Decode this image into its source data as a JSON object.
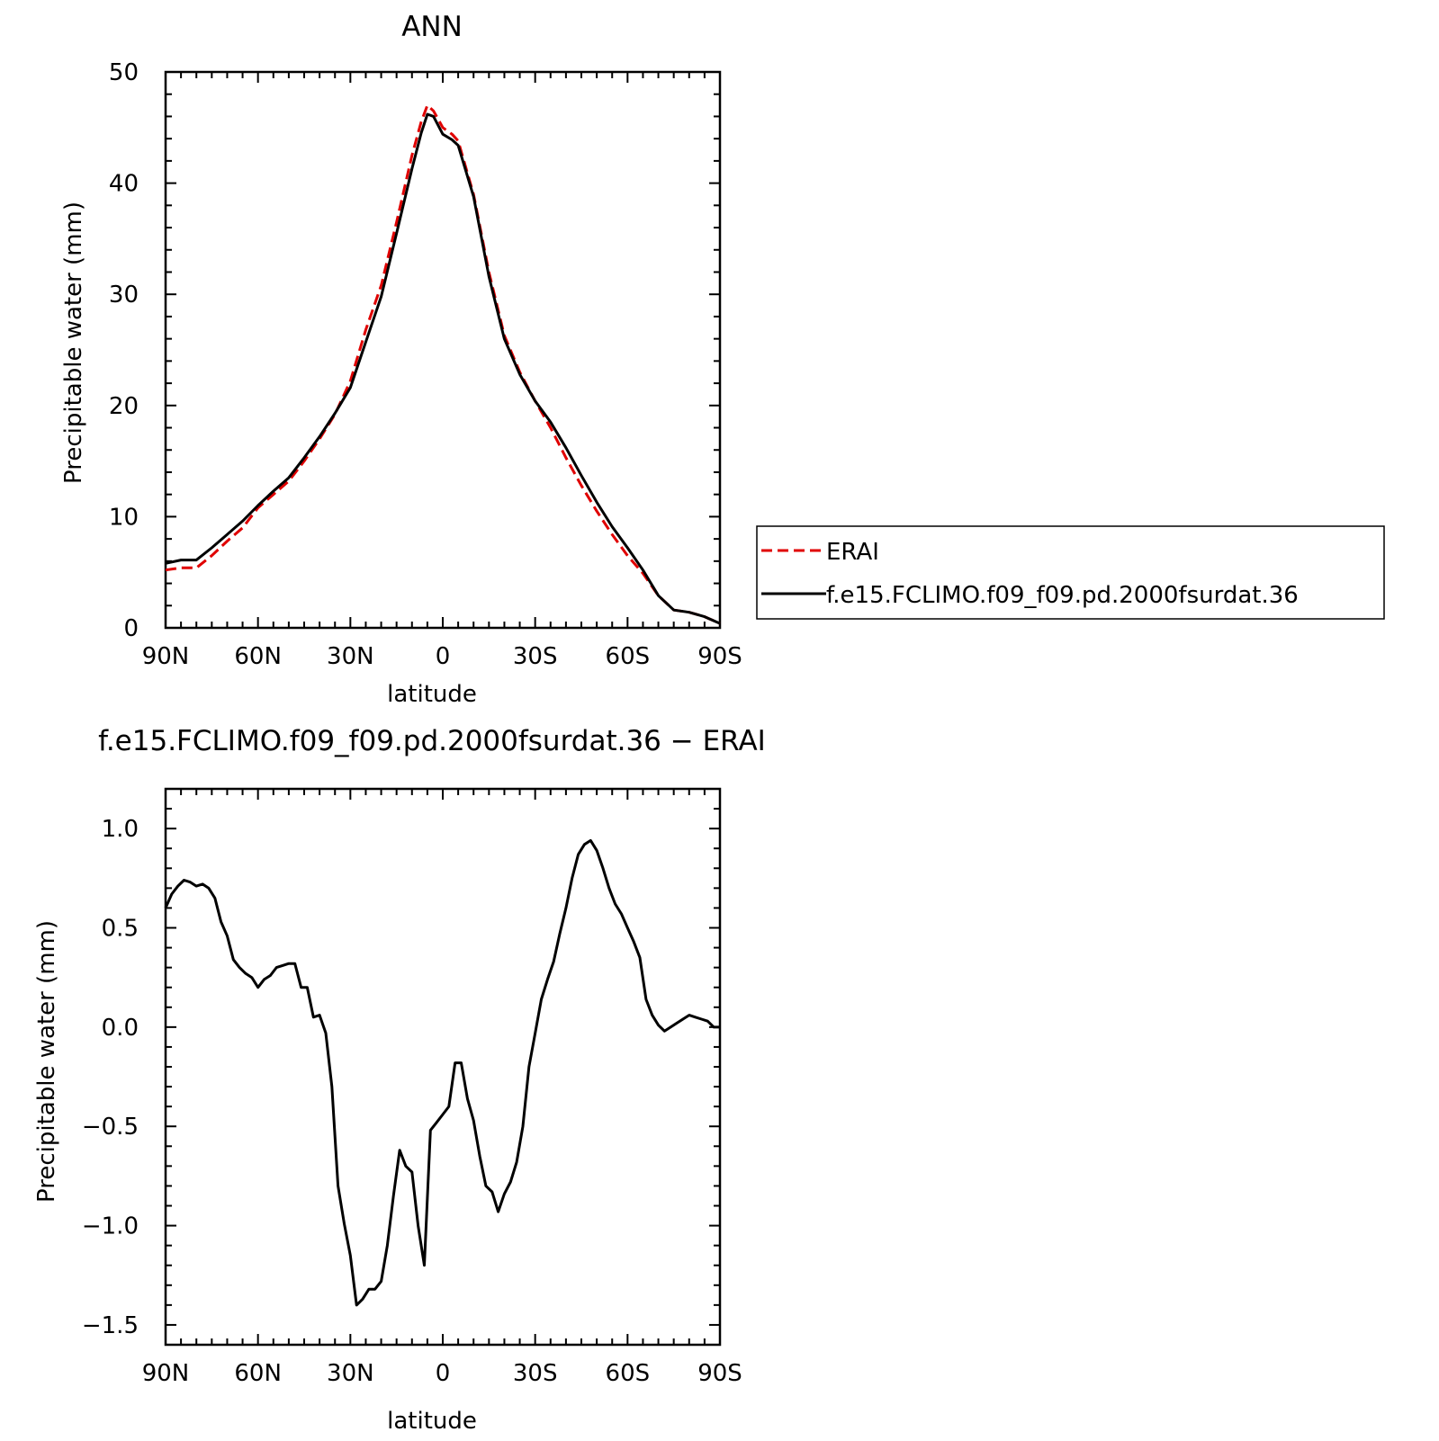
{
  "chart_data": [
    {
      "type": "line",
      "title": "ANN",
      "xlabel": "latitude",
      "ylabel": "Precipitable water (mm)",
      "xlim": [
        90,
        -90
      ],
      "ylim": [
        0,
        50
      ],
      "x_ticks": [
        {
          "value": 90,
          "label": "90N"
        },
        {
          "value": 60,
          "label": "60N"
        },
        {
          "value": 30,
          "label": "30N"
        },
        {
          "value": 0,
          "label": "0"
        },
        {
          "value": -30,
          "label": "30S"
        },
        {
          "value": -60,
          "label": "60S"
        },
        {
          "value": -90,
          "label": "90S"
        }
      ],
      "y_ticks": [
        {
          "value": 0,
          "label": "0"
        },
        {
          "value": 10,
          "label": "10"
        },
        {
          "value": 20,
          "label": "20"
        },
        {
          "value": 30,
          "label": "30"
        },
        {
          "value": 40,
          "label": "40"
        },
        {
          "value": 50,
          "label": "50"
        }
      ],
      "legend_position": "right",
      "series": [
        {
          "name": "ERAI",
          "color": "#e00000",
          "dash": "dashed",
          "x": [
            90,
            85,
            80,
            75,
            70,
            65,
            60,
            55,
            50,
            45,
            40,
            35,
            30,
            25,
            20,
            15,
            10,
            7,
            5,
            3,
            0,
            -3,
            -5,
            -10,
            -15,
            -20,
            -25,
            -30,
            -35,
            -40,
            -45,
            -50,
            -55,
            -60,
            -65,
            -70,
            -75,
            -80,
            -85,
            -90
          ],
          "y": [
            5.2,
            5.4,
            5.4,
            6.5,
            7.8,
            9.0,
            10.8,
            12.0,
            13.2,
            15.0,
            17.0,
            19.2,
            22.2,
            26.8,
            30.8,
            36.5,
            42.5,
            45.5,
            47.0,
            46.5,
            45.0,
            44.4,
            43.8,
            39.0,
            32.0,
            26.3,
            23.0,
            20.4,
            18.0,
            15.3,
            12.8,
            10.5,
            8.4,
            6.5,
            4.9,
            2.9,
            1.6,
            1.4,
            1.0,
            0.4
          ]
        },
        {
          "name": "f.e15.FCLIMO.f09_f09.pd.2000fsurdat.36",
          "color": "#000000",
          "dash": "solid",
          "x": [
            90,
            85,
            80,
            75,
            70,
            65,
            60,
            55,
            50,
            45,
            40,
            35,
            30,
            25,
            20,
            15,
            10,
            7,
            5,
            3,
            0,
            -3,
            -5,
            -10,
            -15,
            -20,
            -25,
            -30,
            -35,
            -40,
            -45,
            -50,
            -55,
            -60,
            -65,
            -70,
            -75,
            -80,
            -85,
            -90
          ],
          "y": [
            5.8,
            6.1,
            6.1,
            7.2,
            8.4,
            9.6,
            11.0,
            12.3,
            13.5,
            15.3,
            17.2,
            19.3,
            21.6,
            25.7,
            29.8,
            35.5,
            41.3,
            44.5,
            46.2,
            46.0,
            44.4,
            43.9,
            43.4,
            38.8,
            31.6,
            26.0,
            22.8,
            20.4,
            18.5,
            16.2,
            13.7,
            11.3,
            9.1,
            7.2,
            5.2,
            2.9,
            1.6,
            1.4,
            1.0,
            0.4
          ]
        }
      ]
    },
    {
      "type": "line",
      "title": "f.e15.FCLIMO.f09_f09.pd.2000fsurdat.36 − ERAI",
      "xlabel": "latitude",
      "ylabel": "Precipitable water (mm)",
      "xlim": [
        90,
        -90
      ],
      "ylim": [
        -1.6,
        1.2
      ],
      "x_ticks": [
        {
          "value": 90,
          "label": "90N"
        },
        {
          "value": 60,
          "label": "60N"
        },
        {
          "value": 30,
          "label": "30N"
        },
        {
          "value": 0,
          "label": "0"
        },
        {
          "value": -30,
          "label": "30S"
        },
        {
          "value": -60,
          "label": "60S"
        },
        {
          "value": -90,
          "label": "90S"
        }
      ],
      "y_ticks": [
        {
          "value": -1.5,
          "label": "−1.5"
        },
        {
          "value": -1.0,
          "label": "−1.0"
        },
        {
          "value": -0.5,
          "label": "−0.5"
        },
        {
          "value": 0.0,
          "label": "0.0"
        },
        {
          "value": 0.5,
          "label": "0.5"
        },
        {
          "value": 1.0,
          "label": "1.0"
        }
      ],
      "series": [
        {
          "color": "#000000",
          "dash": "solid",
          "x": [
            90,
            88,
            86,
            84,
            82,
            80,
            78,
            76,
            74,
            72,
            70,
            68,
            66,
            64,
            62,
            60,
            58,
            56,
            54,
            52,
            50,
            48,
            46,
            44,
            42,
            40,
            38,
            36,
            34,
            32,
            30,
            28,
            26,
            24,
            22,
            20,
            18,
            16,
            14,
            12,
            10,
            8,
            6,
            4,
            2,
            0,
            -2,
            -4,
            -6,
            -8,
            -10,
            -12,
            -14,
            -16,
            -18,
            -20,
            -22,
            -24,
            -26,
            -28,
            -30,
            -32,
            -34,
            -36,
            -38,
            -40,
            -42,
            -44,
            -46,
            -48,
            -50,
            -52,
            -54,
            -56,
            -58,
            -60,
            -62,
            -64,
            -66,
            -68,
            -70,
            -72,
            -74,
            -76,
            -78,
            -80,
            -82,
            -84,
            -86,
            -88,
            -90
          ],
          "y": [
            0.6,
            0.67,
            0.71,
            0.74,
            0.73,
            0.71,
            0.72,
            0.7,
            0.65,
            0.53,
            0.46,
            0.34,
            0.3,
            0.27,
            0.25,
            0.2,
            0.24,
            0.26,
            0.3,
            0.31,
            0.32,
            0.32,
            0.2,
            0.2,
            0.05,
            0.06,
            -0.03,
            -0.3,
            -0.8,
            -0.99,
            -1.15,
            -1.4,
            -1.37,
            -1.32,
            -1.32,
            -1.28,
            -1.1,
            -0.85,
            -0.62,
            -0.7,
            -0.73,
            -1.0,
            -1.2,
            -0.52,
            -0.48,
            -0.44,
            -0.4,
            -0.18,
            -0.18,
            -0.36,
            -0.47,
            -0.65,
            -0.8,
            -0.83,
            -0.93,
            -0.84,
            -0.78,
            -0.68,
            -0.5,
            -0.2,
            -0.03,
            0.14,
            0.24,
            0.33,
            0.47,
            0.6,
            0.75,
            0.87,
            0.92,
            0.94,
            0.89,
            0.8,
            0.7,
            0.62,
            0.57,
            0.5,
            0.43,
            0.35,
            0.14,
            0.06,
            0.01,
            -0.02,
            0.0,
            0.02,
            0.04,
            0.06,
            0.05,
            0.04,
            0.03,
            0.0,
            0.0
          ]
        }
      ]
    }
  ]
}
